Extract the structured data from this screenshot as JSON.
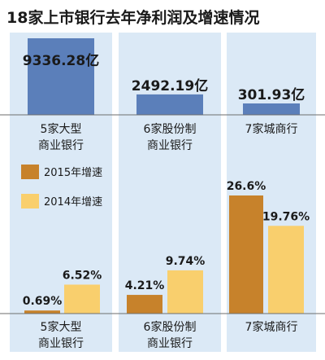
{
  "chart_data": [
    {
      "type": "bar",
      "title": "18家上市银行去年净利润及增速情况",
      "categories": [
        "5家大型商业银行",
        "6家股份制商业银行",
        "7家城商行"
      ],
      "category_labels": [
        [
          "5家大型",
          "商业银行"
        ],
        [
          "6家股份制",
          "商业银行"
        ],
        [
          "7家城商行"
        ]
      ],
      "values": [
        9336.28,
        2492.19,
        301.93
      ],
      "value_labels": [
        "9336.28亿",
        "2492.19亿",
        "301.93亿"
      ],
      "unit": "亿",
      "ylim": [
        0,
        9336.28
      ]
    },
    {
      "type": "bar",
      "categories": [
        "5家大型商业银行",
        "6家股份制商业银行",
        "7家城商行"
      ],
      "category_labels": [
        [
          "5家大型",
          "商业银行"
        ],
        [
          "6家股份制",
          "商业银行"
        ],
        [
          "7家城商行"
        ]
      ],
      "series": [
        {
          "name": "2015年增速",
          "values": [
            0.69,
            4.21,
            26.6
          ],
          "labels": [
            "0.69%",
            "4.21%",
            "26.6%"
          ]
        },
        {
          "name": "2014年增速",
          "values": [
            6.52,
            9.74,
            19.76
          ],
          "labels": [
            "6.52%",
            "9.74%",
            "19.76%"
          ]
        }
      ],
      "unit": "%",
      "legend_position": "top-left",
      "ylim": [
        0,
        26.6
      ]
    }
  ],
  "colors": {
    "panel_bg": "#dbe9f6",
    "profit_bar": "#5b7fba",
    "growth_2015": "#c7822b",
    "growth_2014": "#f9cf6d",
    "axis_line": "#6e6e6e",
    "text": "#1a1a1a"
  }
}
